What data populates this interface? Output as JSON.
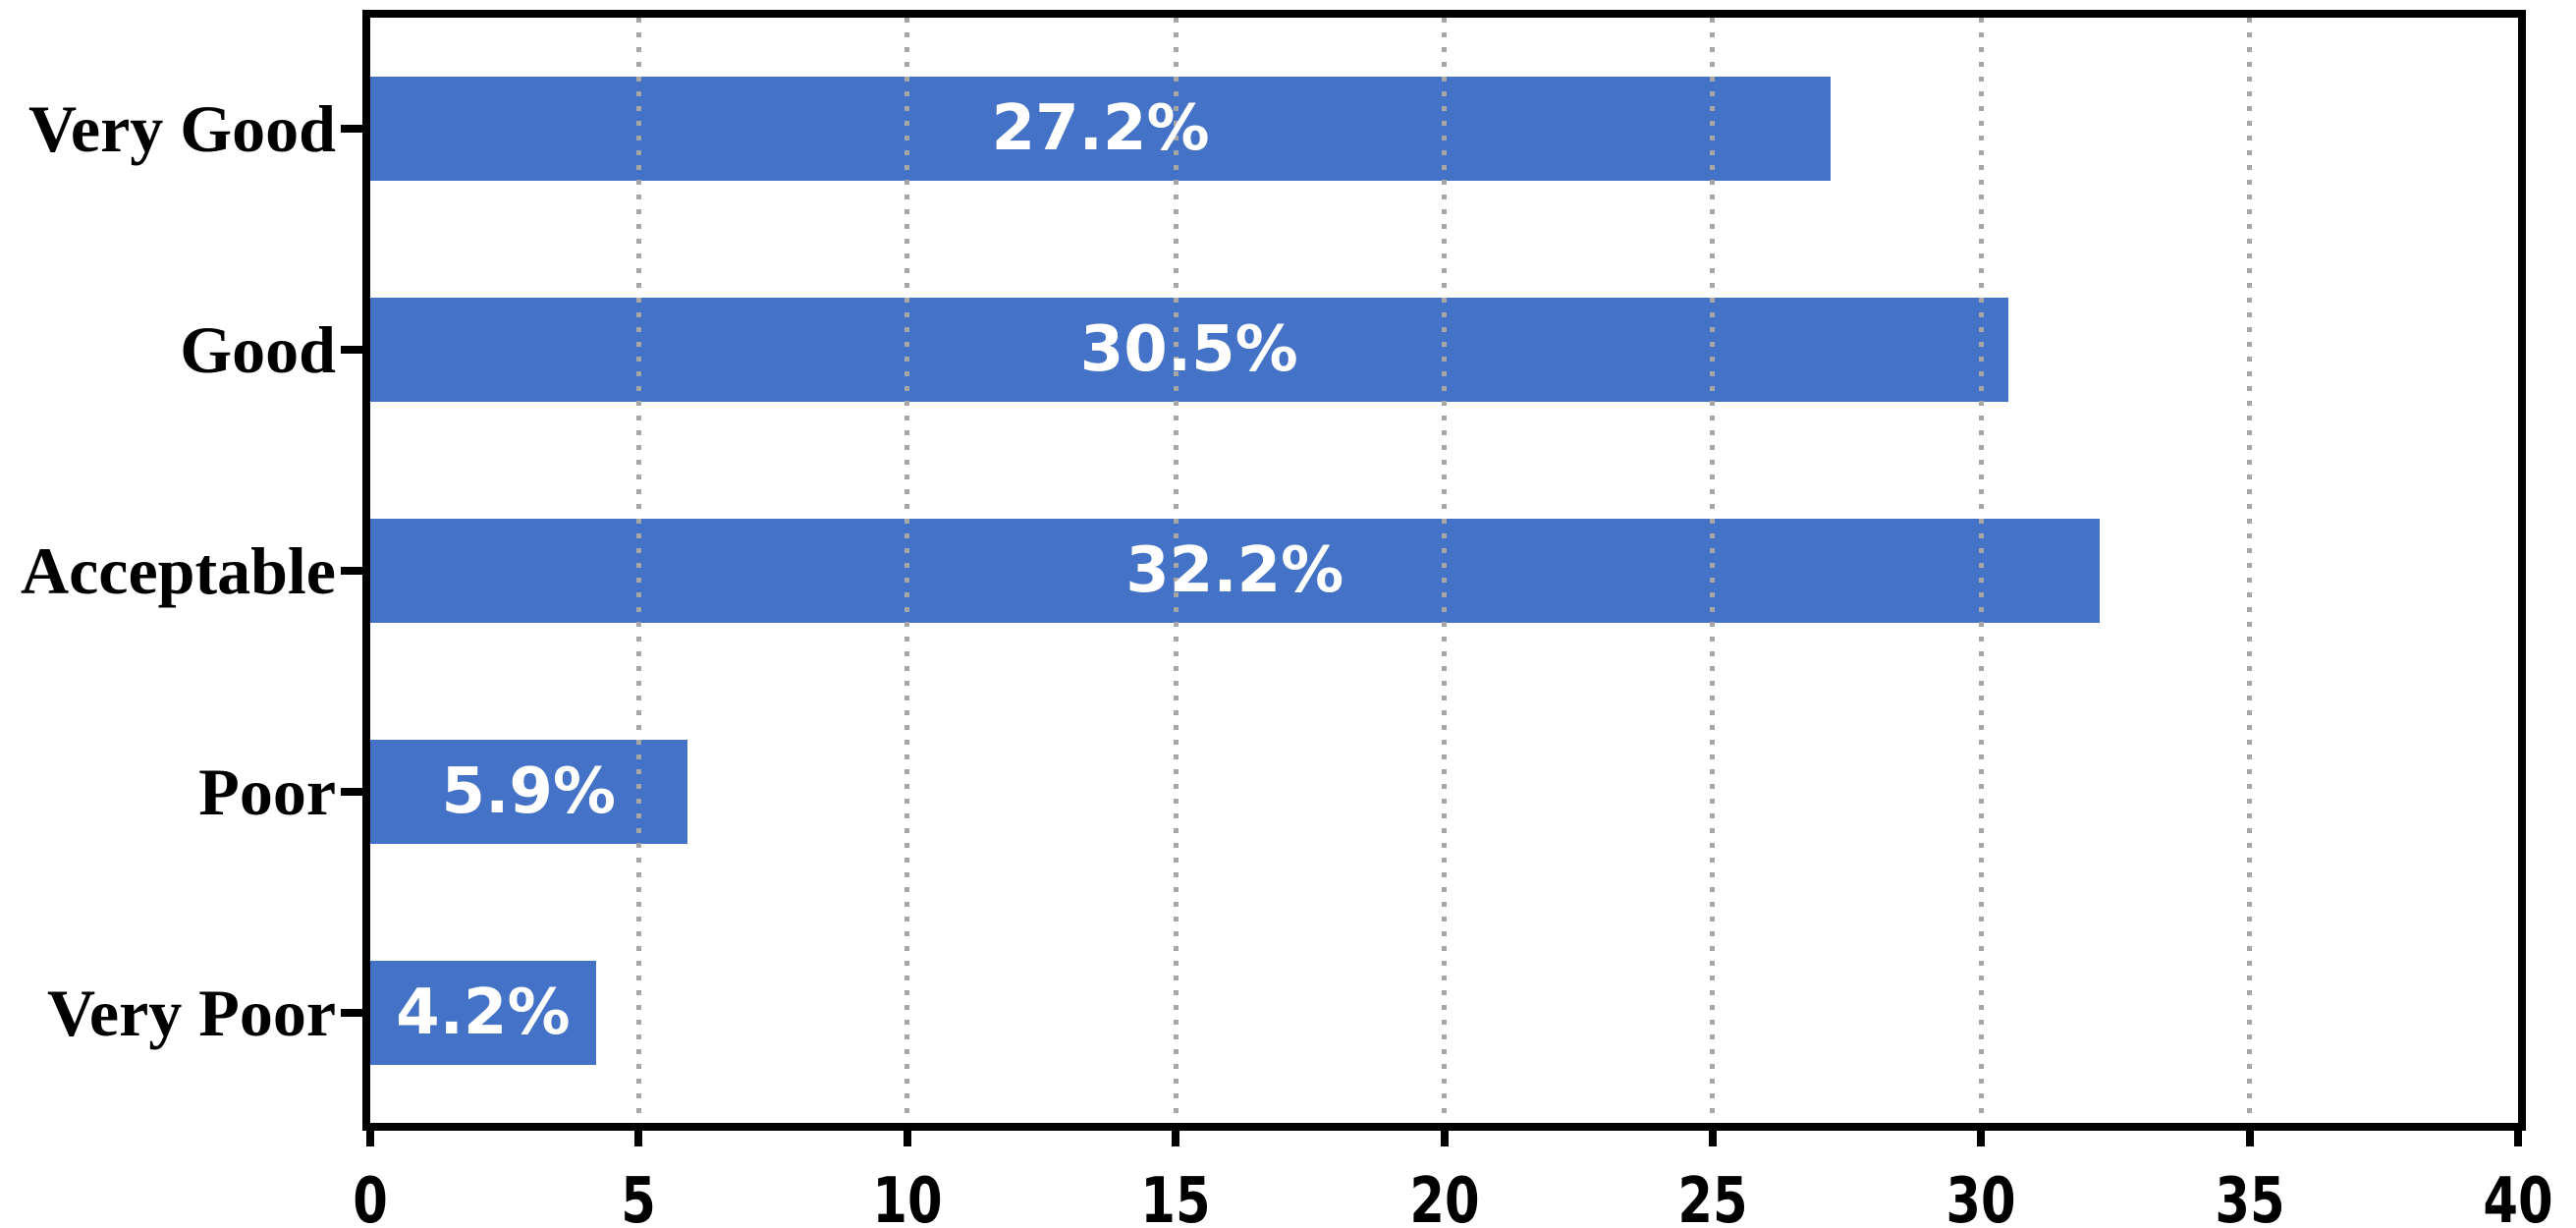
{
  "chart_data": {
    "type": "bar",
    "orientation": "horizontal",
    "title": "",
    "xlabel": "",
    "ylabel": "",
    "categories": [
      "Very Good",
      "Good",
      "Acceptable",
      "Poor",
      "Very Poor"
    ],
    "values": [
      27.2,
      30.5,
      32.2,
      5.9,
      4.2
    ],
    "value_labels": [
      "27.2%",
      "30.5%",
      "32.2%",
      "5.9%",
      "4.2%"
    ],
    "value_label_position": "center-inside-bar",
    "xlim": [
      0,
      40
    ],
    "x_ticks": [
      0,
      5,
      10,
      15,
      20,
      25,
      30,
      35,
      40
    ],
    "x_tick_labels": [
      "0",
      "5",
      "10",
      "15",
      "20",
      "25",
      "30",
      "35",
      "40"
    ],
    "grid": "vertical-dotted-at-ticks-over-bars",
    "legend": "none",
    "frame": "closed-box",
    "colors": {
      "bar": "#4372C6",
      "value_label_text": "#FFFFFF",
      "gridline": "#A6A6A6",
      "axis_and_ticks": "#000000",
      "category_label_text": "#000000",
      "tick_label_text": "#000000",
      "background": "#FFFFFF"
    }
  }
}
